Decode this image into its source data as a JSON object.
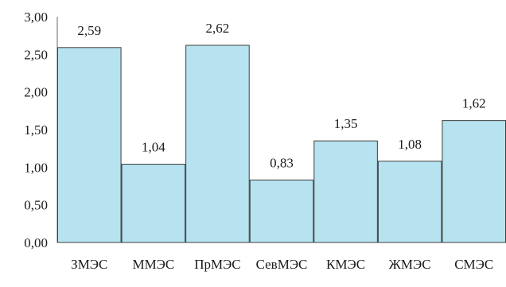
{
  "chart_data": {
    "type": "bar",
    "categories": [
      "ЗМЭС",
      "ММЭС",
      "ПрМЭС",
      "СевМЭС",
      "КМЭС",
      "ЖМЭС",
      "СМЭС"
    ],
    "values": [
      2.59,
      1.04,
      2.62,
      0.83,
      1.35,
      1.08,
      1.62
    ],
    "value_labels": [
      "2,59",
      "1,04",
      "2,62",
      "0,83",
      "1,35",
      "1,08",
      "1,62"
    ],
    "y_ticks": [
      0,
      0.5,
      1,
      1.5,
      2,
      2.5,
      3
    ],
    "y_tick_labels": [
      "0,00",
      "0,50",
      "1,00",
      "1,50",
      "2,00",
      "2,50",
      "3,00"
    ],
    "ylim": [
      0,
      3
    ],
    "grid": false,
    "bar_color": "#b7e3f1",
    "bar_edge_color": "#3c3c3c"
  }
}
